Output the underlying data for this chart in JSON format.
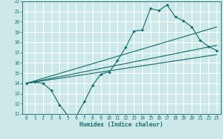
{
  "xlabel": "Humidex (Indice chaleur)",
  "xlim": [
    -0.5,
    23.5
  ],
  "ylim": [
    11,
    22
  ],
  "xticks": [
    0,
    1,
    2,
    3,
    4,
    5,
    6,
    7,
    8,
    9,
    10,
    11,
    12,
    13,
    14,
    15,
    16,
    17,
    18,
    19,
    20,
    21,
    22,
    23
  ],
  "yticks": [
    11,
    12,
    13,
    14,
    15,
    16,
    17,
    18,
    19,
    20,
    21,
    22
  ],
  "bg_color": "#cce8e8",
  "grid_color": "#ffffff",
  "line_color": "#1a7070",
  "line1_x": [
    0,
    1,
    2,
    3,
    4,
    5,
    6,
    7,
    8,
    9,
    10,
    11,
    12,
    13,
    14,
    15,
    16,
    17,
    18,
    19,
    20,
    21,
    22,
    23
  ],
  "line1_y": [
    14.0,
    14.1,
    14.0,
    13.3,
    11.9,
    10.85,
    10.75,
    12.2,
    13.8,
    14.9,
    15.1,
    16.2,
    17.5,
    19.1,
    19.2,
    21.3,
    21.1,
    21.65,
    20.5,
    20.1,
    19.5,
    18.2,
    17.6,
    17.2
  ],
  "line2_x": [
    0,
    23
  ],
  "line2_y": [
    14.0,
    19.5
  ],
  "line3_x": [
    0,
    23
  ],
  "line3_y": [
    14.0,
    17.7
  ],
  "line4_x": [
    0,
    23
  ],
  "line4_y": [
    14.0,
    16.8
  ]
}
